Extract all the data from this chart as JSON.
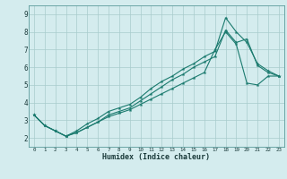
{
  "xlabel": "Humidex (Indice chaleur)",
  "bg_color": "#d4ecee",
  "grid_color": "#a8cccc",
  "line_color": "#1a7a6e",
  "xlim": [
    -0.5,
    23.5
  ],
  "ylim": [
    1.5,
    9.5
  ],
  "xticks": [
    0,
    1,
    2,
    3,
    4,
    5,
    6,
    7,
    8,
    9,
    10,
    11,
    12,
    13,
    14,
    15,
    16,
    17,
    18,
    19,
    20,
    21,
    22,
    23
  ],
  "yticks": [
    2,
    3,
    4,
    5,
    6,
    7,
    8,
    9
  ],
  "line1_x": [
    0,
    1,
    2,
    3,
    4,
    5,
    6,
    7,
    8,
    9,
    10,
    11,
    12,
    13,
    14,
    15,
    16,
    17,
    18,
    19,
    20,
    21,
    22,
    23
  ],
  "line1_y": [
    3.3,
    2.7,
    2.4,
    2.1,
    2.3,
    2.6,
    2.9,
    3.3,
    3.5,
    3.7,
    4.1,
    4.5,
    4.9,
    5.3,
    5.6,
    6.0,
    6.3,
    6.6,
    8.1,
    7.4,
    7.6,
    6.1,
    5.7,
    5.5
  ],
  "line2_x": [
    0,
    1,
    2,
    3,
    4,
    5,
    6,
    7,
    8,
    9,
    10,
    11,
    12,
    13,
    14,
    15,
    16,
    17,
    18,
    19,
    20,
    21,
    22,
    23
  ],
  "line2_y": [
    3.3,
    2.7,
    2.4,
    2.1,
    2.4,
    2.8,
    3.1,
    3.5,
    3.7,
    3.9,
    4.3,
    4.8,
    5.2,
    5.5,
    5.9,
    6.2,
    6.6,
    6.9,
    8.8,
    8.0,
    7.4,
    6.2,
    5.8,
    5.5
  ],
  "line3_x": [
    0,
    1,
    2,
    3,
    4,
    5,
    6,
    7,
    8,
    9,
    10,
    11,
    12,
    13,
    14,
    15,
    16,
    17,
    18,
    19,
    20,
    21,
    22,
    23
  ],
  "line3_y": [
    3.3,
    2.7,
    2.4,
    2.1,
    2.3,
    2.6,
    2.9,
    3.2,
    3.4,
    3.6,
    3.9,
    4.2,
    4.5,
    4.8,
    5.1,
    5.4,
    5.7,
    7.0,
    8.0,
    7.3,
    5.1,
    5.0,
    5.5,
    5.5
  ]
}
